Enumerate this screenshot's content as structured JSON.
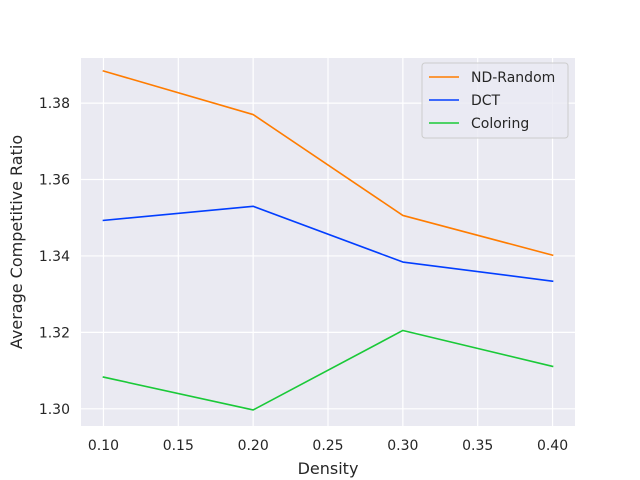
{
  "chart_data": {
    "type": "line",
    "title": "",
    "xlabel": "Density",
    "ylabel": "Average Competitive Ratio",
    "x": [
      0.1,
      0.2,
      0.3,
      0.4
    ],
    "xlim": [
      0.085,
      0.415
    ],
    "ylim": [
      1.2955,
      1.3918
    ],
    "x_ticks": [
      0.1,
      0.15,
      0.2,
      0.25,
      0.3,
      0.35,
      0.4
    ],
    "x_tick_labels": [
      "0.10",
      "0.15",
      "0.20",
      "0.25",
      "0.30",
      "0.35",
      "0.40"
    ],
    "y_ticks": [
      1.3,
      1.32,
      1.34,
      1.36,
      1.38
    ],
    "y_tick_labels": [
      "1.30",
      "1.32",
      "1.34",
      "1.36",
      "1.38"
    ],
    "grid": true,
    "legend_position": "top-right",
    "background": "#eaeaf2",
    "series": [
      {
        "name": "ND-Random",
        "color": "#ff7c00",
        "values": [
          1.3884,
          1.377,
          1.3506,
          1.3402
        ]
      },
      {
        "name": "DCT",
        "color": "#023eff",
        "values": [
          1.3493,
          1.353,
          1.3384,
          1.3334
        ]
      },
      {
        "name": "Coloring",
        "color": "#1ac938",
        "values": [
          1.3083,
          1.2997,
          1.3205,
          1.3111
        ]
      }
    ]
  }
}
